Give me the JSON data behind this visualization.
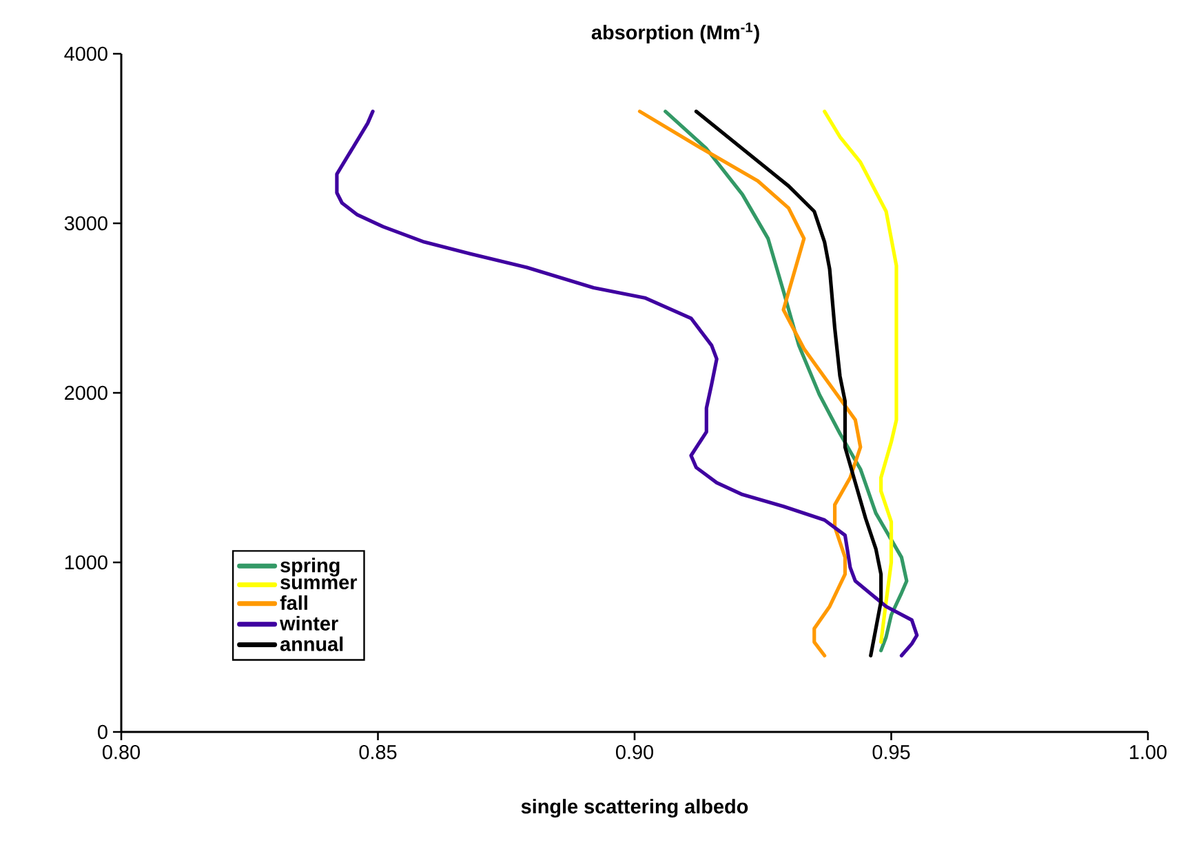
{
  "chart_data": {
    "type": "line",
    "title": "absorption (Mm$^{-1}$)",
    "xlabel": "single scattering albedo",
    "xlim": [
      0.8,
      1.0
    ],
    "xticks": [
      {
        "value": 0.8,
        "label": "0.80"
      },
      {
        "value": 0.85,
        "label": "0.85"
      },
      {
        "value": 0.9,
        "label": "0.90"
      },
      {
        "value": 0.95,
        "label": "0.95"
      },
      {
        "value": 1.0,
        "label": "1.00"
      }
    ],
    "ylim": [
      0,
      4000
    ],
    "yticks": [
      0,
      1000,
      2000,
      3000,
      4000
    ],
    "legend": "bottom left",
    "marker": "none",
    "line_style": "solid",
    "series": [
      {
        "name": "spring",
        "color": "#339966",
        "x": [
          0.906,
          0.914,
          0.921,
          0.926,
          0.929,
          0.932,
          0.936,
          0.94,
          0.944,
          0.947,
          0.952,
          0.953,
          0.952,
          0.95,
          0.949,
          0.948
        ],
        "values": [
          3660,
          3440,
          3170,
          2910,
          2600,
          2280,
          1990,
          1760,
          1550,
          1290,
          1030,
          890,
          820,
          690,
          560,
          480
        ]
      },
      {
        "name": "summer",
        "color": "#ffff00",
        "x": [
          0.937,
          0.94,
          0.944,
          0.949,
          0.951,
          0.951,
          0.95,
          0.948,
          0.948,
          0.95,
          0.95,
          0.949,
          0.948
        ],
        "values": [
          3660,
          3510,
          3360,
          3070,
          2750,
          1840,
          1710,
          1500,
          1420,
          1240,
          1000,
          770,
          530
        ]
      },
      {
        "name": "fall",
        "color": "#ff9900",
        "x": [
          0.901,
          0.912,
          0.924,
          0.93,
          0.933,
          0.931,
          0.929,
          0.933,
          0.938,
          0.943,
          0.944,
          0.942,
          0.939,
          0.939,
          0.941,
          0.941,
          0.938,
          0.935,
          0.935,
          0.937
        ],
        "values": [
          3660,
          3460,
          3250,
          3090,
          2910,
          2700,
          2490,
          2260,
          2050,
          1840,
          1680,
          1500,
          1340,
          1210,
          1030,
          930,
          740,
          610,
          530,
          450
        ]
      },
      {
        "name": "winter",
        "color": "#3f00a0",
        "x": [
          0.849,
          0.848,
          0.842,
          0.842,
          0.843,
          0.846,
          0.851,
          0.859,
          0.868,
          0.879,
          0.892,
          0.902,
          0.911,
          0.915,
          0.916,
          0.915,
          0.914,
          0.914,
          0.911,
          0.912,
          0.916,
          0.921,
          0.929,
          0.937,
          0.941,
          0.942,
          0.943,
          0.949,
          0.954,
          0.955,
          0.954,
          0.952
        ],
        "values": [
          3660,
          3590,
          3290,
          3180,
          3120,
          3050,
          2980,
          2890,
          2820,
          2740,
          2620,
          2560,
          2440,
          2280,
          2200,
          2050,
          1910,
          1770,
          1630,
          1560,
          1470,
          1400,
          1330,
          1250,
          1160,
          970,
          890,
          740,
          660,
          570,
          520,
          450
        ]
      },
      {
        "name": "annual",
        "color": "#000000",
        "x": [
          0.912,
          0.921,
          0.93,
          0.935,
          0.937,
          0.938,
          0.939,
          0.94,
          0.941,
          0.941,
          0.943,
          0.945,
          0.947,
          0.948,
          0.948,
          0.947,
          0.946
        ],
        "values": [
          3660,
          3440,
          3220,
          3070,
          2890,
          2730,
          2380,
          2100,
          1950,
          1680,
          1470,
          1260,
          1080,
          930,
          770,
          610,
          450
        ]
      }
    ]
  }
}
